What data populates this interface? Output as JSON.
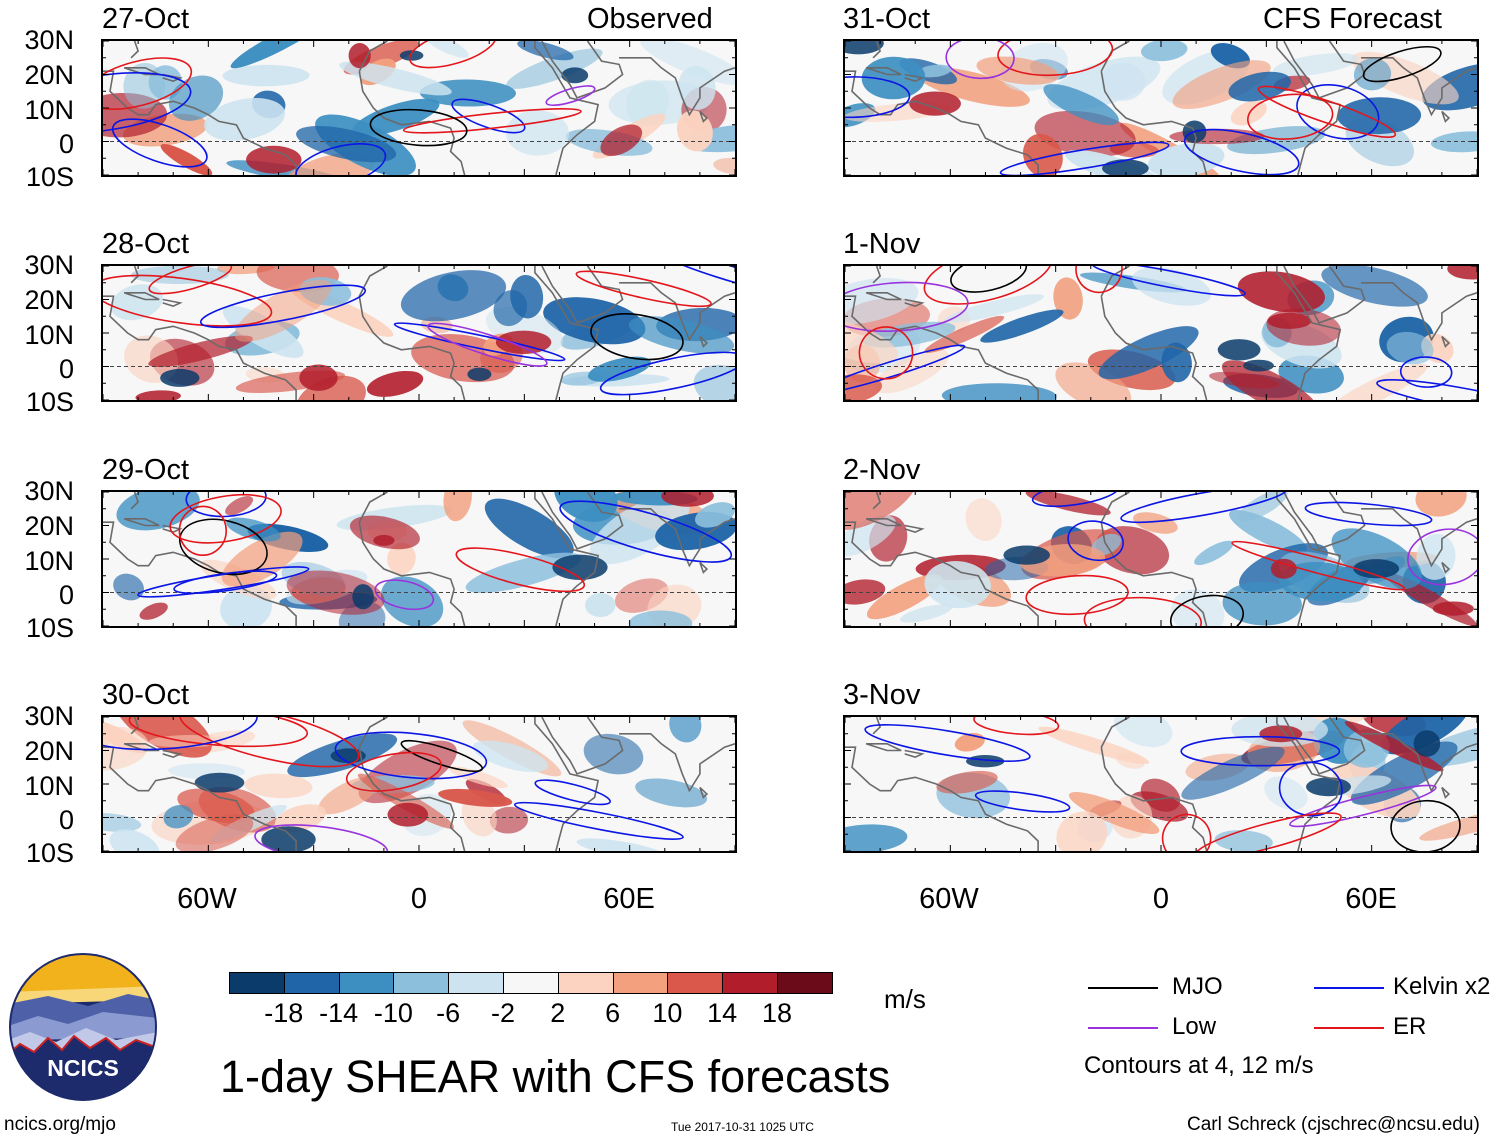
{
  "colors": {
    "mjo": "#000000",
    "kelvin": "#0b16e6",
    "low": "#9933dd",
    "er": "#e3161c",
    "coast": "#6a6a6a"
  },
  "observed_label": "Observed",
  "forecast_label": "CFS Forecast",
  "panels_left": [
    {
      "date": "27-Oct"
    },
    {
      "date": "28-Oct"
    },
    {
      "date": "29-Oct"
    },
    {
      "date": "30-Oct"
    }
  ],
  "panels_right": [
    {
      "date": "31-Oct"
    },
    {
      "date": "1-Nov"
    },
    {
      "date": "2-Nov"
    },
    {
      "date": "3-Nov"
    }
  ],
  "lat_labels": [
    "30N",
    "20N",
    "10N",
    "0",
    "10S"
  ],
  "lon_labels": [
    "60W",
    "0",
    "60E"
  ],
  "colorbar": {
    "colors": [
      "#0b3b6b",
      "#1f65a8",
      "#3d8fc2",
      "#8cbfdc",
      "#cde4f0",
      "#f7f7f7",
      "#fbd3c0",
      "#f2a07e",
      "#d9584b",
      "#b11d2b",
      "#6b0a18"
    ],
    "labels": [
      "-18",
      "-14",
      "-10",
      "-6",
      "-2",
      "2",
      "6",
      "10",
      "14",
      "18"
    ],
    "units": "m/s"
  },
  "legend": {
    "mjo": "MJO",
    "kelvin": "Kelvin x2",
    "low": "Low",
    "er": "ER",
    "contours_note": "Contours at 4, 12 m/s"
  },
  "title": "1-day SHEAR with CFS forecasts",
  "logo_text": "NCICS",
  "footer": {
    "url": "ncics.org/mjo",
    "timestamp": "Tue 2017-10-31 1025 UTC",
    "credit": "Carl Schreck (cjschrec@ncsu.edu)"
  }
}
